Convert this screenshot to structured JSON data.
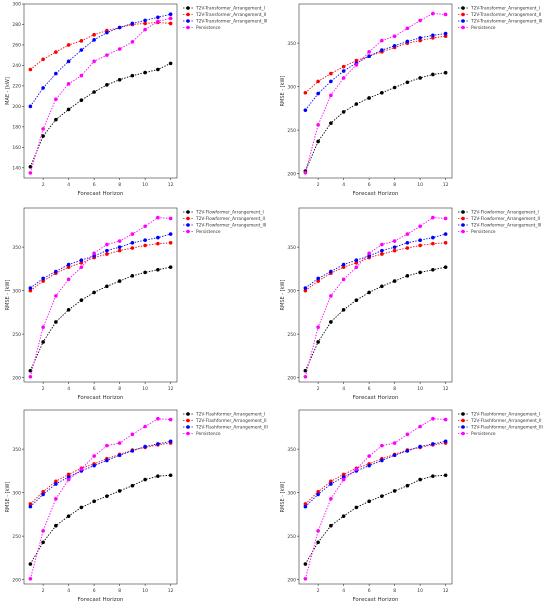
{
  "chart_data": [
    {
      "type": "line",
      "xlabel": "Forecast Horizon",
      "ylabel": "MAE - [kW]",
      "xlim": [
        0.5,
        12.5
      ],
      "ylim": [
        130,
        300
      ],
      "xticks": [
        2,
        4,
        6,
        8,
        10,
        12
      ],
      "yticks": [
        140,
        160,
        180,
        200,
        220,
        240,
        260,
        280,
        300
      ],
      "grid": false,
      "legend": "top-right",
      "x": [
        1,
        2,
        3,
        4,
        5,
        6,
        7,
        8,
        9,
        10,
        11,
        12
      ],
      "series": [
        {
          "name": "T2V-Transformer_Arrangement_I",
          "color": "#000000",
          "values": [
            141,
            171,
            187,
            197,
            206,
            214,
            221,
            226,
            230,
            233,
            236,
            242
          ]
        },
        {
          "name": "T2V-Transformer_Arrangement_II",
          "color": "#ff0000",
          "values": [
            236,
            246,
            253,
            260,
            264,
            270,
            274,
            277,
            280,
            281,
            282,
            281
          ]
        },
        {
          "name": "T2V-Transformer_Arrangement_III",
          "color": "#0000ff",
          "values": [
            200,
            218,
            232,
            244,
            255,
            265,
            272,
            277,
            281,
            284,
            287,
            290
          ]
        },
        {
          "name": "Persistence",
          "color": "#ff00ff",
          "values": [
            135,
            178,
            207,
            222,
            230,
            244,
            250,
            256,
            263,
            275,
            283,
            286
          ]
        }
      ]
    },
    {
      "type": "line",
      "xlabel": "Forecast Horizon",
      "ylabel": "RMSE - [kW]",
      "xlim": [
        0.5,
        12.5
      ],
      "ylim": [
        195,
        395
      ],
      "xticks": [
        2,
        4,
        6,
        8,
        10,
        12
      ],
      "yticks": [
        200,
        250,
        300,
        350
      ],
      "grid": false,
      "legend": "top-right",
      "x": [
        1,
        2,
        3,
        4,
        5,
        6,
        7,
        8,
        9,
        10,
        11,
        12
      ],
      "series": [
        {
          "name": "T2V-Transformer_Arrangement_I",
          "color": "#000000",
          "values": [
            203,
            237,
            258,
            271,
            280,
            287,
            293,
            299,
            305,
            310,
            314,
            316
          ]
        },
        {
          "name": "T2V-Transformer_Arrangement_II",
          "color": "#ff0000",
          "values": [
            293,
            306,
            315,
            323,
            330,
            335,
            340,
            345,
            350,
            353,
            356,
            358
          ]
        },
        {
          "name": "T2V-Transformer_Arrangement_III",
          "color": "#0000ff",
          "values": [
            273,
            292,
            306,
            318,
            327,
            335,
            342,
            347,
            352,
            356,
            359,
            361
          ]
        },
        {
          "name": "Persistence",
          "color": "#ff00ff",
          "values": [
            201,
            256,
            290,
            310,
            325,
            340,
            353,
            358,
            367,
            376,
            384,
            383
          ]
        }
      ]
    },
    {
      "type": "line",
      "xlabel": "Forecast Horizon",
      "ylabel": "RMSE - [kW]",
      "xlim": [
        0.5,
        12.5
      ],
      "ylim": [
        195,
        395
      ],
      "xticks": [
        2,
        4,
        6,
        8,
        10,
        12
      ],
      "yticks": [
        200,
        250,
        300,
        350
      ],
      "grid": false,
      "legend": "top-right",
      "x": [
        1,
        2,
        3,
        4,
        5,
        6,
        7,
        8,
        9,
        10,
        11,
        12
      ],
      "series": [
        {
          "name": "T2V-Flowformer_Arrangement_I",
          "color": "#000000",
          "values": [
            208,
            241,
            264,
            278,
            289,
            298,
            305,
            311,
            317,
            321,
            324,
            327
          ]
        },
        {
          "name": "T2V-Flowformer_Arrangement_II",
          "color": "#ff0000",
          "values": [
            300,
            311,
            320,
            327,
            332,
            338,
            342,
            346,
            349,
            352,
            354,
            355
          ]
        },
        {
          "name": "T2V-Flowformer_Arrangement_III",
          "color": "#0000ff",
          "values": [
            303,
            314,
            322,
            330,
            335,
            340,
            346,
            350,
            355,
            358,
            361,
            365
          ]
        },
        {
          "name": "Persistence",
          "color": "#ff00ff",
          "values": [
            201,
            258,
            294,
            313,
            327,
            343,
            353,
            357,
            365,
            374,
            384,
            383
          ]
        }
      ]
    },
    {
      "type": "line",
      "xlabel": "Forecast Horizon",
      "ylabel": "RMSE - [kW]",
      "xlim": [
        0.5,
        12.5
      ],
      "ylim": [
        195,
        395
      ],
      "xticks": [
        2,
        4,
        6,
        8,
        10,
        12
      ],
      "yticks": [
        200,
        250,
        300,
        350
      ],
      "grid": false,
      "legend": "top-right",
      "x": [
        1,
        2,
        3,
        4,
        5,
        6,
        7,
        8,
        9,
        10,
        11,
        12
      ],
      "series": [
        {
          "name": "T2V-Flowformer_Arrangement_I",
          "color": "#000000",
          "values": [
            208,
            241,
            264,
            278,
            289,
            298,
            305,
            311,
            317,
            321,
            324,
            327
          ]
        },
        {
          "name": "T2V-Flowformer_Arrangement_II",
          "color": "#ff0000",
          "values": [
            300,
            311,
            320,
            327,
            332,
            338,
            342,
            346,
            349,
            352,
            354,
            355
          ]
        },
        {
          "name": "T2V-Flowformer_Arrangement_III",
          "color": "#0000ff",
          "values": [
            303,
            314,
            322,
            330,
            335,
            340,
            346,
            350,
            355,
            358,
            361,
            365
          ]
        },
        {
          "name": "Persistence",
          "color": "#ff00ff",
          "values": [
            201,
            258,
            294,
            313,
            327,
            343,
            353,
            357,
            365,
            374,
            384,
            383
          ]
        }
      ]
    },
    {
      "type": "line",
      "xlabel": "Forecast Horizon",
      "ylabel": "RMSE - [kW]",
      "xlim": [
        0.5,
        12.5
      ],
      "ylim": [
        195,
        395
      ],
      "xticks": [
        2,
        4,
        6,
        8,
        10,
        12
      ],
      "yticks": [
        200,
        250,
        300,
        350
      ],
      "grid": false,
      "legend": "top-right",
      "x": [
        1,
        2,
        3,
        4,
        5,
        6,
        7,
        8,
        9,
        10,
        11,
        12
      ],
      "series": [
        {
          "name": "T2V-Flashformer_Arrangement_I",
          "color": "#000000",
          "values": [
            218,
            243,
            262,
            273,
            283,
            290,
            296,
            302,
            308,
            315,
            319,
            320
          ]
        },
        {
          "name": "T2V-Flashformer_Arrangement_II",
          "color": "#ff0000",
          "values": [
            287,
            301,
            313,
            321,
            328,
            333,
            339,
            344,
            349,
            352,
            355,
            357
          ]
        },
        {
          "name": "T2V-Flashformer_Arrangement_III",
          "color": "#0000ff",
          "values": [
            284,
            298,
            310,
            318,
            325,
            331,
            337,
            343,
            348,
            353,
            356,
            359
          ]
        },
        {
          "name": "Persistence",
          "color": "#ff00ff",
          "values": [
            201,
            256,
            293,
            315,
            327,
            342,
            354,
            357,
            367,
            376,
            385,
            384
          ]
        }
      ]
    },
    {
      "type": "line",
      "xlabel": "Forecast Horizon",
      "ylabel": "RMSE - [kW]",
      "xlim": [
        0.5,
        12.5
      ],
      "ylim": [
        195,
        395
      ],
      "xticks": [
        2,
        4,
        6,
        8,
        10,
        12
      ],
      "yticks": [
        200,
        250,
        300,
        350
      ],
      "grid": false,
      "legend": "top-right",
      "x": [
        1,
        2,
        3,
        4,
        5,
        6,
        7,
        8,
        9,
        10,
        11,
        12
      ],
      "series": [
        {
          "name": "T2V-Flashformer_Arrangement_I",
          "color": "#000000",
          "values": [
            218,
            243,
            262,
            273,
            283,
            290,
            296,
            302,
            308,
            315,
            319,
            320
          ]
        },
        {
          "name": "T2V-Flashformer_Arrangement_II",
          "color": "#ff0000",
          "values": [
            287,
            301,
            313,
            321,
            328,
            333,
            339,
            344,
            349,
            352,
            355,
            357
          ]
        },
        {
          "name": "T2V-Flashformer_Arrangement_III",
          "color": "#0000ff",
          "values": [
            284,
            298,
            310,
            318,
            325,
            331,
            337,
            343,
            348,
            353,
            356,
            359
          ]
        },
        {
          "name": "Persistence",
          "color": "#ff00ff",
          "values": [
            201,
            256,
            293,
            315,
            327,
            342,
            354,
            357,
            367,
            376,
            385,
            384
          ]
        }
      ]
    }
  ]
}
